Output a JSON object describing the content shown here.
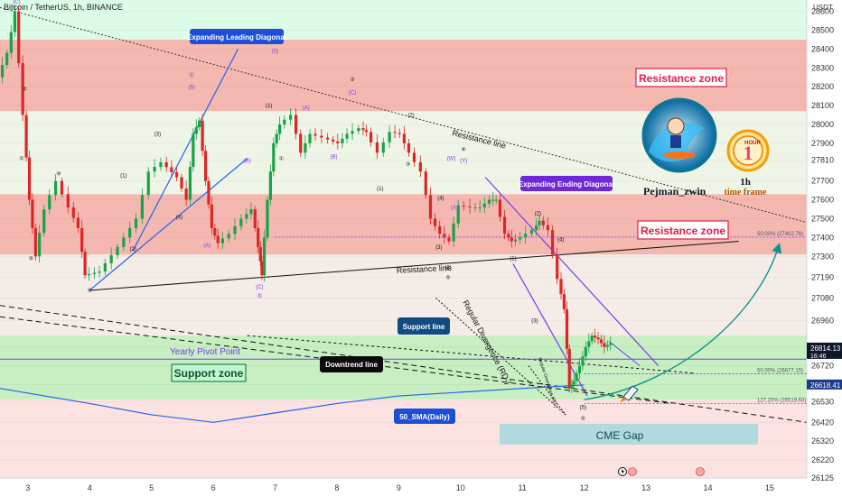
{
  "header": {
    "symbol_title": "Bitcoin / TetherUS, 1h, BINANCE",
    "currency": "USDT"
  },
  "chart_data": {
    "type": "candlestick",
    "ylim": [
      26125,
      28660
    ],
    "xlim": [
      2.55,
      15.6
    ],
    "y_ticks": [
      26125,
      26220,
      26320,
      26420,
      26530,
      26620,
      26720,
      26820,
      26960,
      27080,
      27190,
      27300,
      27400,
      27500,
      27600,
      27700,
      27810,
      27900,
      28000,
      28100,
      28200,
      28300,
      28400,
      28500,
      28600
    ],
    "x_ticks": [
      {
        "v": 3,
        "label": "3"
      },
      {
        "v": 4,
        "label": "4"
      },
      {
        "v": 5,
        "label": "5"
      },
      {
        "v": 6,
        "label": "6"
      },
      {
        "v": 7,
        "label": "7"
      },
      {
        "v": 8,
        "label": "8"
      },
      {
        "v": 9,
        "label": "9"
      },
      {
        "v": 10,
        "label": "10"
      },
      {
        "v": 11,
        "label": "11"
      },
      {
        "v": 12,
        "label": "12"
      },
      {
        "v": 13,
        "label": "13"
      },
      {
        "v": 14,
        "label": "14"
      },
      {
        "v": 15,
        "label": "15"
      }
    ],
    "price_path": [
      [
        2.55,
        28250
      ],
      [
        2.7,
        28380
      ],
      [
        2.82,
        28600
      ],
      [
        2.95,
        28050
      ],
      [
        3.05,
        27600
      ],
      [
        3.15,
        27300
      ],
      [
        3.3,
        27550
      ],
      [
        3.5,
        27700
      ],
      [
        3.7,
        27560
      ],
      [
        3.85,
        27450
      ],
      [
        3.95,
        27200
      ],
      [
        4.2,
        27220
      ],
      [
        4.5,
        27350
      ],
      [
        4.8,
        27500
      ],
      [
        5.0,
        27750
      ],
      [
        5.2,
        27800
      ],
      [
        5.45,
        27720
      ],
      [
        5.6,
        27600
      ],
      [
        5.7,
        27950
      ],
      [
        5.8,
        28020
      ],
      [
        5.9,
        27700
      ],
      [
        6.0,
        27450
      ],
      [
        6.1,
        27370
      ],
      [
        6.3,
        27420
      ],
      [
        6.5,
        27500
      ],
      [
        6.65,
        27550
      ],
      [
        6.75,
        27350
      ],
      [
        6.8,
        27200
      ],
      [
        6.9,
        27600
      ],
      [
        7.0,
        27900
      ],
      [
        7.1,
        28000
      ],
      [
        7.3,
        28050
      ],
      [
        7.45,
        27850
      ],
      [
        7.6,
        27950
      ],
      [
        7.9,
        27920
      ],
      [
        8.05,
        27900
      ],
      [
        8.2,
        27950
      ],
      [
        8.4,
        27980
      ],
      [
        8.5,
        27960
      ],
      [
        8.7,
        27850
      ],
      [
        8.9,
        27960
      ],
      [
        9.05,
        27950
      ],
      [
        9.2,
        27850
      ],
      [
        9.4,
        27750
      ],
      [
        9.55,
        27500
      ],
      [
        9.7,
        27420
      ],
      [
        9.85,
        27380
      ],
      [
        10.0,
        27570
      ],
      [
        10.2,
        27560
      ],
      [
        10.35,
        27560
      ],
      [
        10.5,
        27600
      ],
      [
        10.6,
        27600
      ],
      [
        10.75,
        27420
      ],
      [
        10.85,
        27380
      ],
      [
        11.0,
        27400
      ],
      [
        11.2,
        27440
      ],
      [
        11.3,
        27490
      ],
      [
        11.45,
        27440
      ],
      [
        11.6,
        27180
      ],
      [
        11.7,
        27020
      ],
      [
        11.78,
        26600
      ],
      [
        11.85,
        26640
      ],
      [
        11.95,
        26720
      ],
      [
        12.05,
        26820
      ],
      [
        12.15,
        26880
      ],
      [
        12.25,
        26860
      ],
      [
        12.35,
        26820
      ],
      [
        12.45,
        26840
      ]
    ],
    "price_labels": [
      {
        "value": "26814.13",
        "sub": "16:46",
        "color": "#0f172a",
        "price": 26814.13
      },
      {
        "value": "26618.41",
        "color": "#1e3a8a",
        "price": 26618.41
      }
    ],
    "zones": [
      {
        "type": "resistance",
        "from": 28070,
        "to": 28450
      },
      {
        "type": "resistance",
        "from": 27310,
        "to": 27630
      },
      {
        "type": "support",
        "from": 26540,
        "to": 26880
      }
    ],
    "fib_levels": [
      {
        "label": "50.00% (27402.76)",
        "price": 27402.76,
        "x_start": 7.0
      },
      {
        "label": "50.00% (26677.15)",
        "price": 26677.15,
        "x_start": 12.0
      },
      {
        "label": "127.20% (26519.63)",
        "price": 26519.63,
        "x_start": 12.0
      }
    ],
    "pivot_price": 26755,
    "annotations": {
      "resistance_zone_1": "Resistance zone",
      "resistance_zone_2": "Resistance zone",
      "support_zone": "Support zone",
      "yearly_pivot": "Yearly Pivot Point",
      "resistance_line_upper": "Resistance line",
      "resistance_line_lower": "Resistance line",
      "expanding_leading": "Expanding Leading Diagonal",
      "expanding_ending": "Expanding Ending Diagonal",
      "support_line": "Support line",
      "downtrend_line": "Downtrend line",
      "sma": "50_SMA(Daily)",
      "cme_gap": "CME Gap",
      "regular_divergence": "Regular Divergence (RD-)",
      "regular_divergence_small": "Regular Divergence (RD-)",
      "author": "Pejman_zwin",
      "timeframe_1": "1h",
      "timeframe_2": "time frame",
      "hour_badge_1": "1",
      "hour_badge_2": "HOUR"
    },
    "wave_labels": [
      {
        "t": "(C)",
        "x": 2.82,
        "y": 28640,
        "c": "#7c3aed"
      },
      {
        "t": "②",
        "x": 2.95,
        "y": 28180,
        "c": "#111"
      },
      {
        "t": "①",
        "x": 2.9,
        "y": 27810,
        "c": "#111"
      },
      {
        "t": "③",
        "x": 3.05,
        "y": 27280,
        "c": "#111"
      },
      {
        "t": "④",
        "x": 3.5,
        "y": 27730,
        "c": "#111"
      },
      {
        "t": "⑤",
        "x": 4.0,
        "y": 27110,
        "c": "#111"
      },
      {
        "t": "(1)",
        "x": 4.55,
        "y": 27720,
        "c": "#111"
      },
      {
        "t": "(2)",
        "x": 4.7,
        "y": 27330,
        "c": "#111"
      },
      {
        "t": "(3)",
        "x": 5.1,
        "y": 27940,
        "c": "#111"
      },
      {
        "t": "(4)",
        "x": 5.45,
        "y": 27500,
        "c": "#111"
      },
      {
        "t": "Ⓐ",
        "x": 5.65,
        "y": 28250,
        "c": "#7c3aed"
      },
      {
        "t": "(5)",
        "x": 5.65,
        "y": 28190,
        "c": "#7c3aed"
      },
      {
        "t": "(A)",
        "x": 5.9,
        "y": 27350,
        "c": "#7c3aed"
      },
      {
        "t": "(B)",
        "x": 6.55,
        "y": 27800,
        "c": "#7c3aed"
      },
      {
        "t": "(C)",
        "x": 6.75,
        "y": 27130,
        "c": "#7c3aed"
      },
      {
        "t": "Ⓑ",
        "x": 6.75,
        "y": 27080,
        "c": "#7c3aed"
      },
      {
        "t": "(1)",
        "x": 6.9,
        "y": 28090,
        "c": "#111"
      },
      {
        "t": "①",
        "x": 7.1,
        "y": 27810,
        "c": "#111"
      },
      {
        "t": "Ⓒ",
        "x": 7.0,
        "y": 28430,
        "c": "#7c3aed"
      },
      {
        "t": "(5)",
        "x": 7.0,
        "y": 28380,
        "c": "#7c3aed"
      },
      {
        "t": "(A)",
        "x": 7.5,
        "y": 28080,
        "c": "#7c3aed"
      },
      {
        "t": "(B)",
        "x": 7.95,
        "y": 27820,
        "c": "#7c3aed"
      },
      {
        "t": "②",
        "x": 8.25,
        "y": 28230,
        "c": "#111"
      },
      {
        "t": "(C)",
        "x": 8.25,
        "y": 28160,
        "c": "#7c3aed"
      },
      {
        "t": "(1)",
        "x": 8.7,
        "y": 27650,
        "c": "#111"
      },
      {
        "t": "(2)",
        "x": 9.2,
        "y": 28040,
        "c": "#111"
      },
      {
        "t": "③",
        "x": 9.15,
        "y": 27780,
        "c": "#111"
      },
      {
        "t": "(W)",
        "x": 9.85,
        "y": 27810,
        "c": "#7c3aed"
      },
      {
        "t": "④",
        "x": 10.05,
        "y": 27860,
        "c": "#111"
      },
      {
        "t": "(Y)",
        "x": 10.05,
        "y": 27800,
        "c": "#7c3aed"
      },
      {
        "t": "(X)",
        "x": 9.9,
        "y": 27550,
        "c": "#7c3aed"
      },
      {
        "t": "(4)",
        "x": 9.68,
        "y": 27600,
        "c": "#111"
      },
      {
        "t": "(3)",
        "x": 9.65,
        "y": 27340,
        "c": "#111"
      },
      {
        "t": "(5)",
        "x": 9.8,
        "y": 27230,
        "c": "#111"
      },
      {
        "t": "⑤",
        "x": 9.8,
        "y": 27180,
        "c": "#111"
      },
      {
        "t": "(2)",
        "x": 11.25,
        "y": 27520,
        "c": "#111"
      },
      {
        "t": "(1)",
        "x": 10.85,
        "y": 27280,
        "c": "#111"
      },
      {
        "t": "(4)",
        "x": 11.62,
        "y": 27380,
        "c": "#111"
      },
      {
        "t": "(3)",
        "x": 11.2,
        "y": 26950,
        "c": "#111"
      },
      {
        "t": "(5)",
        "x": 11.98,
        "y": 26490,
        "c": "#111"
      },
      {
        "t": "⑤",
        "x": 11.98,
        "y": 26430,
        "c": "#111"
      }
    ]
  }
}
